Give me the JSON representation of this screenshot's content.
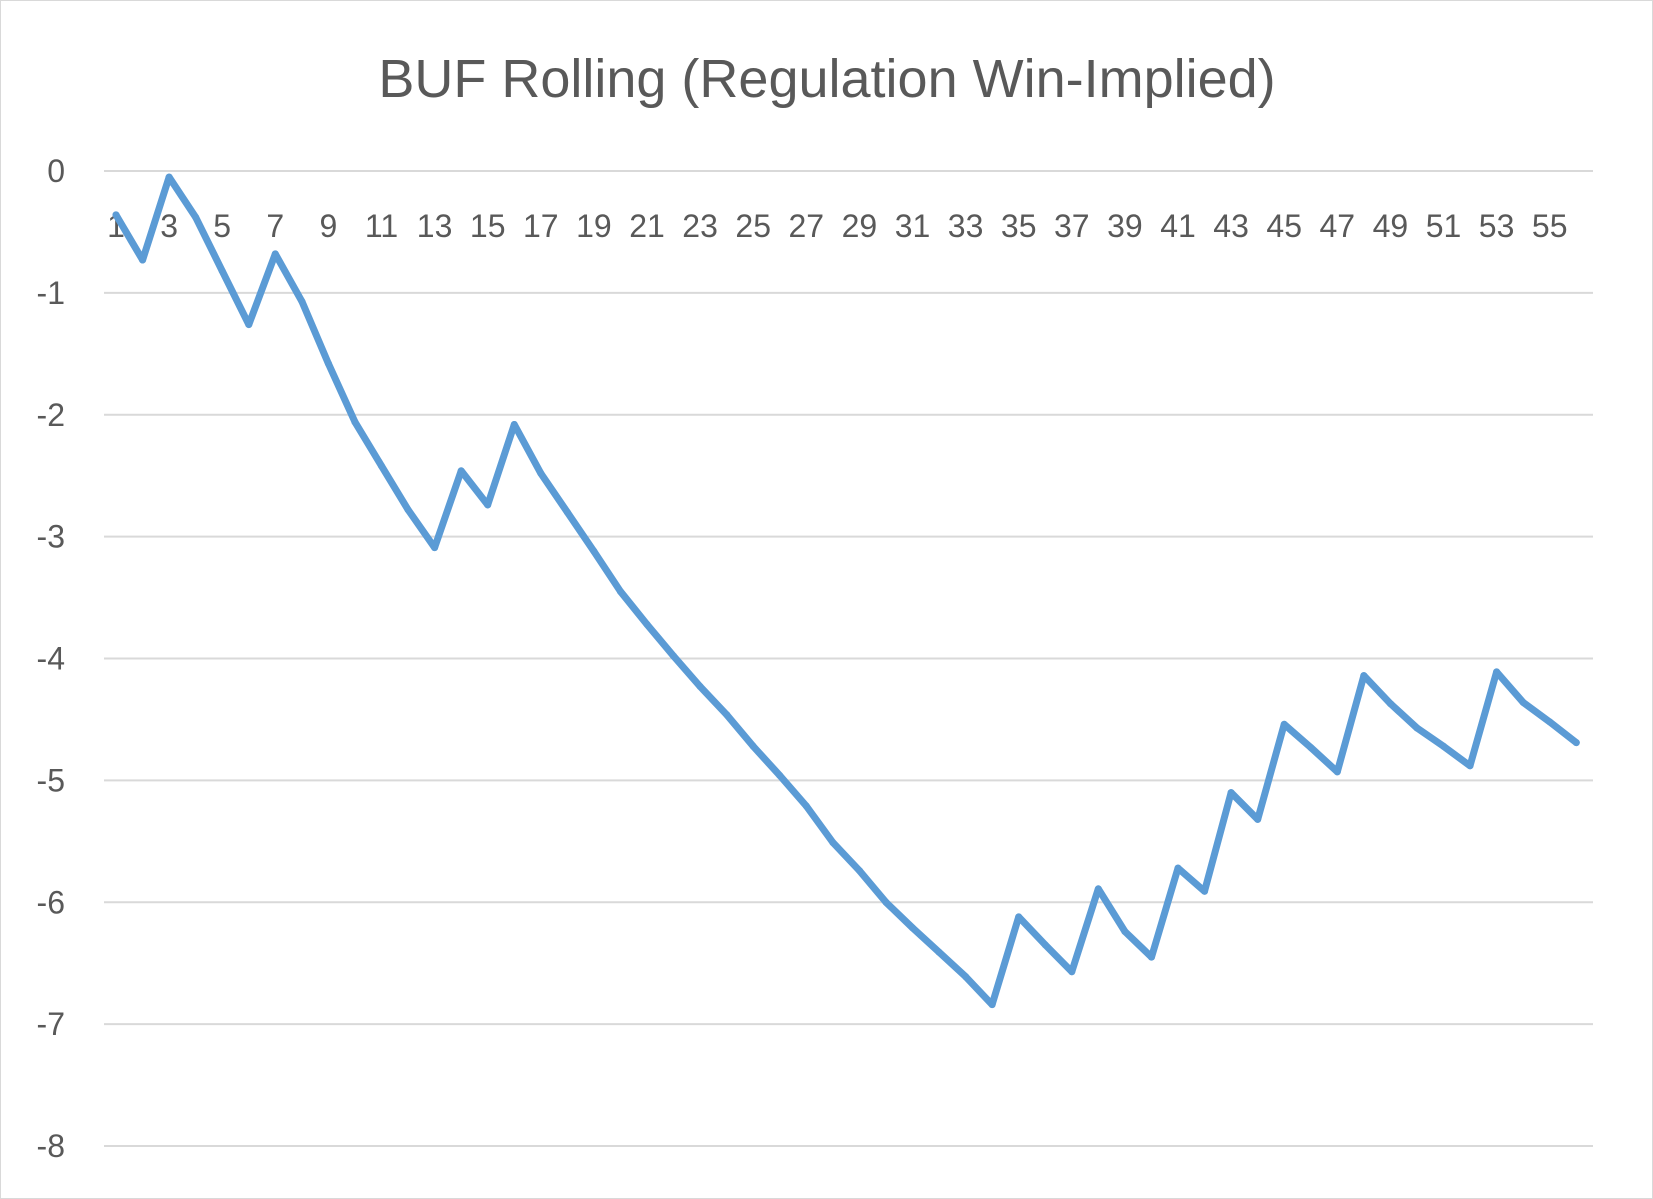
{
  "chart_data": {
    "type": "line",
    "title": "BUF Rolling (Regulation Win-Implied)",
    "xlabel": "",
    "ylabel": "",
    "ylim": [
      -8,
      0
    ],
    "yticks": [
      0,
      -1,
      -2,
      -3,
      -4,
      -5,
      -6,
      -7,
      -8
    ],
    "x_tick_labels": [
      "1",
      "3",
      "5",
      "7",
      "9",
      "11",
      "13",
      "15",
      "17",
      "19",
      "21",
      "23",
      "25",
      "27",
      "29",
      "31",
      "33",
      "35",
      "37",
      "39",
      "41",
      "43",
      "45",
      "47",
      "49",
      "51",
      "53",
      "55"
    ],
    "grid": true,
    "legend": "none",
    "series_color": "#5b9bd5",
    "x": [
      1,
      2,
      3,
      4,
      5,
      6,
      7,
      8,
      9,
      10,
      11,
      12,
      13,
      14,
      15,
      16,
      17,
      18,
      19,
      20,
      21,
      22,
      23,
      24,
      25,
      26,
      27,
      28,
      29,
      30,
      31,
      32,
      33,
      34,
      35,
      36,
      37,
      38,
      39,
      40,
      41,
      42,
      43,
      44,
      45,
      46,
      47,
      48,
      49,
      50,
      51,
      52,
      53,
      54,
      55,
      56
    ],
    "values": [
      -0.36,
      -0.73,
      -0.05,
      -0.38,
      -0.82,
      -1.26,
      -0.68,
      -1.07,
      -1.58,
      -2.06,
      -2.42,
      -2.78,
      -3.09,
      -2.46,
      -2.74,
      -2.08,
      -2.48,
      -2.8,
      -3.12,
      -3.45,
      -3.72,
      -3.98,
      -4.23,
      -4.46,
      -4.72,
      -4.96,
      -5.21,
      -5.51,
      -5.74,
      -6.0,
      -6.21,
      -6.41,
      -6.61,
      -6.84,
      -6.12,
      -6.35,
      -6.57,
      -5.89,
      -6.24,
      -6.45,
      -5.72,
      -5.91,
      -5.1,
      -5.32,
      -4.54,
      -4.73,
      -4.93,
      -4.14,
      -4.37,
      -4.57,
      -4.72,
      -4.88,
      -4.11,
      -4.36,
      -4.52,
      -4.69
    ]
  }
}
